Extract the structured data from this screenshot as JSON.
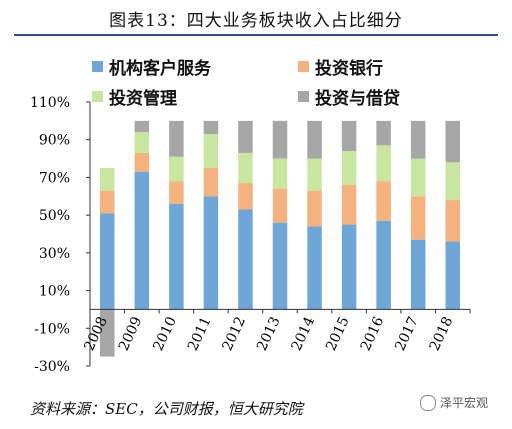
{
  "title": "图表13：四大业务板块收入占比细分",
  "source": "资料来源：SEC，公司财报，恒大研究院",
  "watermark": "泽平宏观",
  "chart_data": {
    "type": "bar",
    "stacked": true,
    "categories": [
      "2008",
      "2009",
      "2010",
      "2011",
      "2012",
      "2013",
      "2014",
      "2015",
      "2016",
      "2017",
      "2018"
    ],
    "series": [
      {
        "name": "机构客户服务",
        "color": "#6ea6d8",
        "values": [
          51,
          73,
          56,
          60,
          53,
          46,
          44,
          45,
          47,
          37,
          36
        ]
      },
      {
        "name": "投资银行",
        "color": "#f6b27c",
        "values": [
          12,
          10,
          12,
          15,
          14,
          18,
          19,
          21,
          21,
          23,
          22
        ]
      },
      {
        "name": "投资管理",
        "color": "#c8e6a0",
        "values": [
          12,
          11,
          13,
          18,
          16,
          16,
          17,
          18,
          19,
          20,
          20
        ]
      },
      {
        "name": "投资与借贷",
        "color": "#a6a6a6",
        "values": [
          -25,
          6,
          19,
          7,
          17,
          20,
          20,
          16,
          13,
          20,
          22
        ]
      }
    ],
    "yticks": [
      "110%",
      "90%",
      "70%",
      "50%",
      "30%",
      "10%",
      "-10%",
      "-30%"
    ],
    "ylim": [
      -30,
      110
    ],
    "legend_position": "top"
  }
}
